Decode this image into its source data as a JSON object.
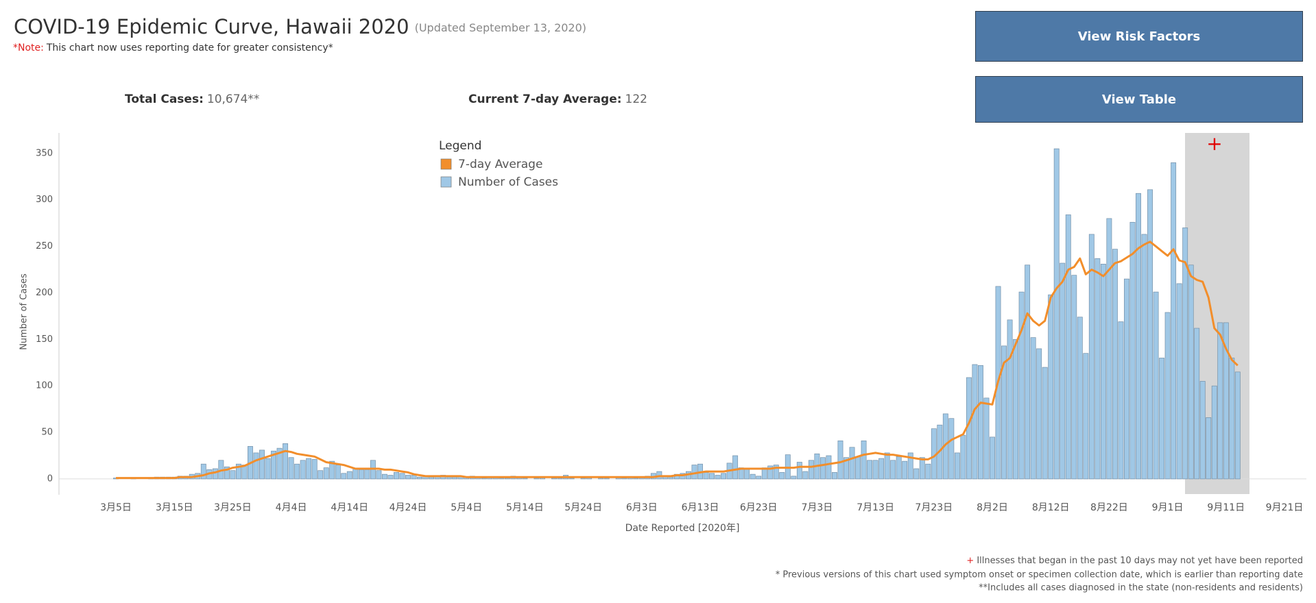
{
  "header": {
    "title": "COVID-19 Epidemic Curve, Hawaii 2020",
    "updated": "(Updated September 13, 2020)",
    "note_label": "*Note:",
    "note_text": "This chart now uses reporting date for greater consistency*"
  },
  "kpis": [
    {
      "label": "Total Cases:",
      "value": "10,674**"
    },
    {
      "label": "Current 7-day Average:",
      "value": "122"
    }
  ],
  "buttons": [
    "View Risk Factors",
    "View Table"
  ],
  "footnotes": [
    {
      "marker": "+",
      "text": "Illnesses that began in the past 10 days may not yet have been reported"
    },
    {
      "text": "* Previous versions of this chart used symptom onset or specimen collection date, which is earlier than reporting date"
    },
    {
      "text": "**Includes all cases diagnosed in the state (non-residents and residents)"
    }
  ],
  "chart_data": {
    "type": "bar",
    "y_label": "Number of Cases",
    "x_label": "Date Reported [2020年]",
    "legend_title": "Legend",
    "annotation": "+",
    "ylim": [
      -17,
      372
    ],
    "yticks": [
      0,
      50,
      100,
      150,
      200,
      250,
      300,
      350
    ],
    "grid": true,
    "categories": [
      "3月5日",
      null,
      null,
      null,
      null,
      null,
      null,
      null,
      null,
      null,
      "3月15日",
      null,
      null,
      null,
      null,
      null,
      null,
      null,
      null,
      null,
      "3月25日",
      null,
      null,
      null,
      null,
      null,
      null,
      null,
      null,
      null,
      "4月4日",
      null,
      null,
      null,
      null,
      null,
      null,
      null,
      null,
      null,
      "4月14日",
      null,
      null,
      null,
      null,
      null,
      null,
      null,
      null,
      null,
      "4月24日",
      null,
      null,
      null,
      null,
      null,
      null,
      null,
      null,
      null,
      "5月4日",
      null,
      null,
      null,
      null,
      null,
      null,
      null,
      null,
      null,
      "5月14日",
      null,
      null,
      null,
      null,
      null,
      null,
      null,
      null,
      null,
      "5月24日",
      null,
      null,
      null,
      null,
      null,
      null,
      null,
      null,
      null,
      "6月3日",
      null,
      null,
      null,
      null,
      null,
      null,
      null,
      null,
      null,
      "6月13日",
      null,
      null,
      null,
      null,
      null,
      null,
      null,
      null,
      null,
      "6月23日",
      null,
      null,
      null,
      null,
      null,
      null,
      null,
      null,
      null,
      "7月3日",
      null,
      null,
      null,
      null,
      null,
      null,
      null,
      null,
      null,
      "7月13日",
      null,
      null,
      null,
      null,
      null,
      null,
      null,
      null,
      null,
      "7月23日",
      null,
      null,
      null,
      null,
      null,
      null,
      null,
      null,
      null,
      "8月2日",
      null,
      null,
      null,
      null,
      null,
      null,
      null,
      null,
      null,
      "8月12日",
      null,
      null,
      null,
      null,
      null,
      null,
      null,
      null,
      null,
      "8月22日",
      null,
      null,
      null,
      null,
      null,
      null,
      null,
      null,
      null,
      "9月1日",
      null,
      null,
      null,
      null,
      null,
      null,
      null,
      null,
      null,
      "9月11日",
      null,
      null,
      null,
      null,
      null,
      null,
      null,
      null,
      null,
      "9月21日"
    ],
    "series": [
      {
        "name": "7-day Average",
        "type": "line",
        "color": "#f28e2b",
        "values": [
          1,
          1,
          1,
          1,
          1,
          1,
          1,
          1,
          1,
          1,
          1,
          2,
          2,
          2,
          3,
          4,
          6,
          7,
          9,
          10,
          12,
          13,
          14,
          17,
          20,
          22,
          24,
          26,
          28,
          30,
          29,
          27,
          26,
          25,
          24,
          21,
          18,
          17,
          16,
          15,
          13,
          11,
          11,
          11,
          11,
          11,
          10,
          10,
          9,
          8,
          7,
          5,
          4,
          3,
          3,
          3,
          3,
          3,
          3,
          3,
          2,
          2,
          2,
          2,
          2,
          2,
          2,
          2,
          2,
          2,
          2,
          2,
          2,
          2,
          2,
          2,
          2,
          2,
          2,
          2,
          2,
          2,
          2,
          2,
          2,
          2,
          2,
          2,
          2,
          2,
          2,
          2,
          2,
          3,
          3,
          3,
          4,
          4,
          5,
          6,
          7,
          8,
          8,
          8,
          8,
          9,
          10,
          11,
          11,
          11,
          11,
          11,
          11,
          12,
          12,
          12,
          12,
          13,
          13,
          13,
          14,
          15,
          16,
          17,
          18,
          20,
          22,
          24,
          26,
          27,
          28,
          27,
          26,
          26,
          25,
          24,
          23,
          22,
          21,
          21,
          24,
          30,
          37,
          42,
          45,
          48,
          60,
          75,
          82,
          81,
          80,
          105,
          125,
          130,
          145,
          160,
          178,
          170,
          165,
          170,
          195,
          205,
          212,
          225,
          228,
          237,
          220,
          225,
          222,
          218,
          225,
          232,
          234,
          238,
          242,
          248,
          252,
          255,
          250,
          245,
          240,
          247,
          235,
          233,
          218,
          214,
          212,
          195,
          162,
          155,
          140,
          128,
          122,
          null,
          null,
          null,
          null,
          null,
          null,
          null,
          null
        ]
      },
      {
        "name": "Number of Cases",
        "type": "bar",
        "color": "#a0c8e6",
        "values": [
          1,
          0,
          0,
          1,
          0,
          0,
          1,
          2,
          2,
          2,
          2,
          3,
          3,
          5,
          6,
          16,
          10,
          11,
          20,
          13,
          9,
          16,
          15,
          35,
          28,
          31,
          22,
          30,
          33,
          38,
          23,
          16,
          20,
          22,
          21,
          9,
          12,
          19,
          15,
          6,
          8,
          11,
          10,
          10,
          20,
          9,
          5,
          4,
          7,
          6,
          4,
          4,
          2,
          3,
          2,
          3,
          4,
          2,
          2,
          3,
          2,
          3,
          2,
          1,
          2,
          2,
          1,
          1,
          3,
          2,
          1,
          0,
          1,
          2,
          0,
          1,
          1,
          4,
          1,
          0,
          1,
          2,
          0,
          1,
          1,
          0,
          2,
          1,
          2,
          1,
          2,
          3,
          6,
          8,
          3,
          2,
          5,
          6,
          8,
          15,
          16,
          7,
          6,
          4,
          6,
          17,
          25,
          12,
          11,
          5,
          3,
          12,
          14,
          15,
          7,
          26,
          3,
          18,
          8,
          20,
          27,
          23,
          25,
          7,
          41,
          23,
          34,
          24,
          41,
          20,
          20,
          22,
          28,
          20,
          24,
          19,
          28,
          11,
          23,
          16,
          54,
          58,
          70,
          65,
          28,
          47,
          109,
          123,
          122,
          87,
          45,
          207,
          143,
          171,
          150,
          201,
          230,
          152,
          140,
          120,
          198,
          355,
          232,
          284,
          219,
          174,
          135,
          263,
          237,
          231,
          280,
          247,
          169,
          215,
          276,
          307,
          263,
          311,
          201,
          130,
          179,
          340,
          210,
          270,
          230,
          162,
          105,
          66,
          100,
          168,
          168,
          130,
          115,
          null,
          null,
          null,
          null,
          null,
          null,
          null,
          null
        ]
      }
    ]
  }
}
